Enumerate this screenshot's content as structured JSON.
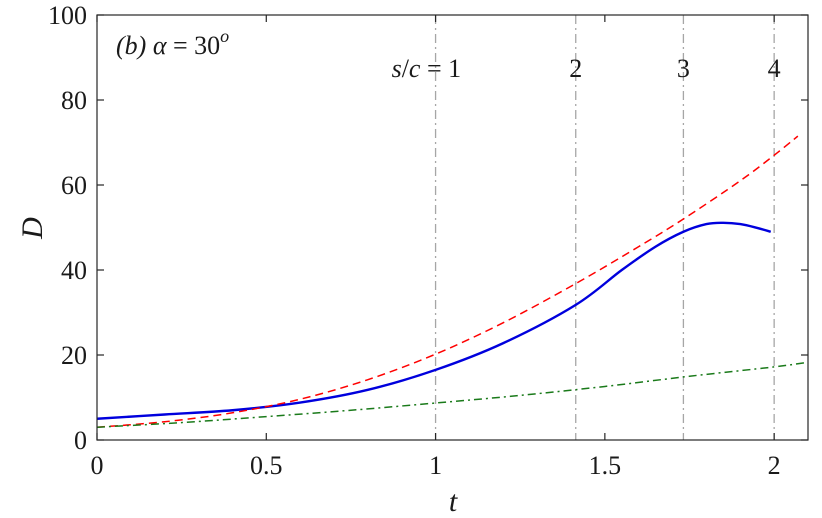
{
  "chart_data": {
    "type": "line",
    "xlabel": "t",
    "ylabel": "D",
    "xlim": [
      0,
      2.1
    ],
    "ylim": [
      0,
      100
    ],
    "xticks": [
      "0",
      "0.5",
      "1",
      "1.5",
      "2"
    ],
    "xtick_values": [
      0,
      0.5,
      1,
      1.5,
      2
    ],
    "yticks": [
      "0",
      "20",
      "40",
      "60",
      "80",
      "100"
    ],
    "ytick_values": [
      0,
      20,
      40,
      60,
      80,
      100
    ],
    "grid": false,
    "legend": "none",
    "panel_label": {
      "prefix": "(b)",
      "symbol": "α",
      "relation": " = 30",
      "superscript": "o"
    },
    "reference_lines": {
      "style": "dash-dot",
      "color": "#a6a6a6",
      "x": [
        1,
        1.414,
        1.732,
        2
      ],
      "labels": [
        "s/c = 1",
        "2",
        "3",
        "4"
      ]
    },
    "series": [
      {
        "style": "solid",
        "color": "#0000dd",
        "x": [
          0,
          0.2,
          0.4,
          0.6,
          0.8,
          1.0,
          1.2,
          1.414,
          1.55,
          1.65,
          1.732,
          1.8,
          1.85,
          1.9,
          1.95,
          1.99
        ],
        "values": [
          5.0,
          6.0,
          7.0,
          8.8,
          11.8,
          16.5,
          22.8,
          31.8,
          40.0,
          45.5,
          49.0,
          50.8,
          51.1,
          50.8,
          49.9,
          49.0
        ]
      },
      {
        "style": "dashed",
        "color": "#ff0000",
        "x": [
          0,
          0.2,
          0.4,
          0.6,
          0.8,
          1.0,
          1.2,
          1.414,
          1.6,
          1.732,
          1.9,
          2.0,
          2.07
        ],
        "values": [
          3.0,
          4.3,
          6.4,
          9.6,
          14.2,
          20.2,
          27.6,
          36.8,
          45.5,
          52.0,
          61.0,
          67.0,
          71.5
        ]
      },
      {
        "style": "dash-dot",
        "color": "#1a7a1a",
        "x": [
          0,
          0.25,
          0.5,
          0.75,
          1.0,
          1.25,
          1.5,
          1.75,
          2.0,
          2.1
        ],
        "values": [
          3.0,
          4.1,
          5.5,
          7.0,
          8.7,
          10.5,
          12.6,
          15.0,
          17.2,
          18.3
        ]
      }
    ]
  }
}
